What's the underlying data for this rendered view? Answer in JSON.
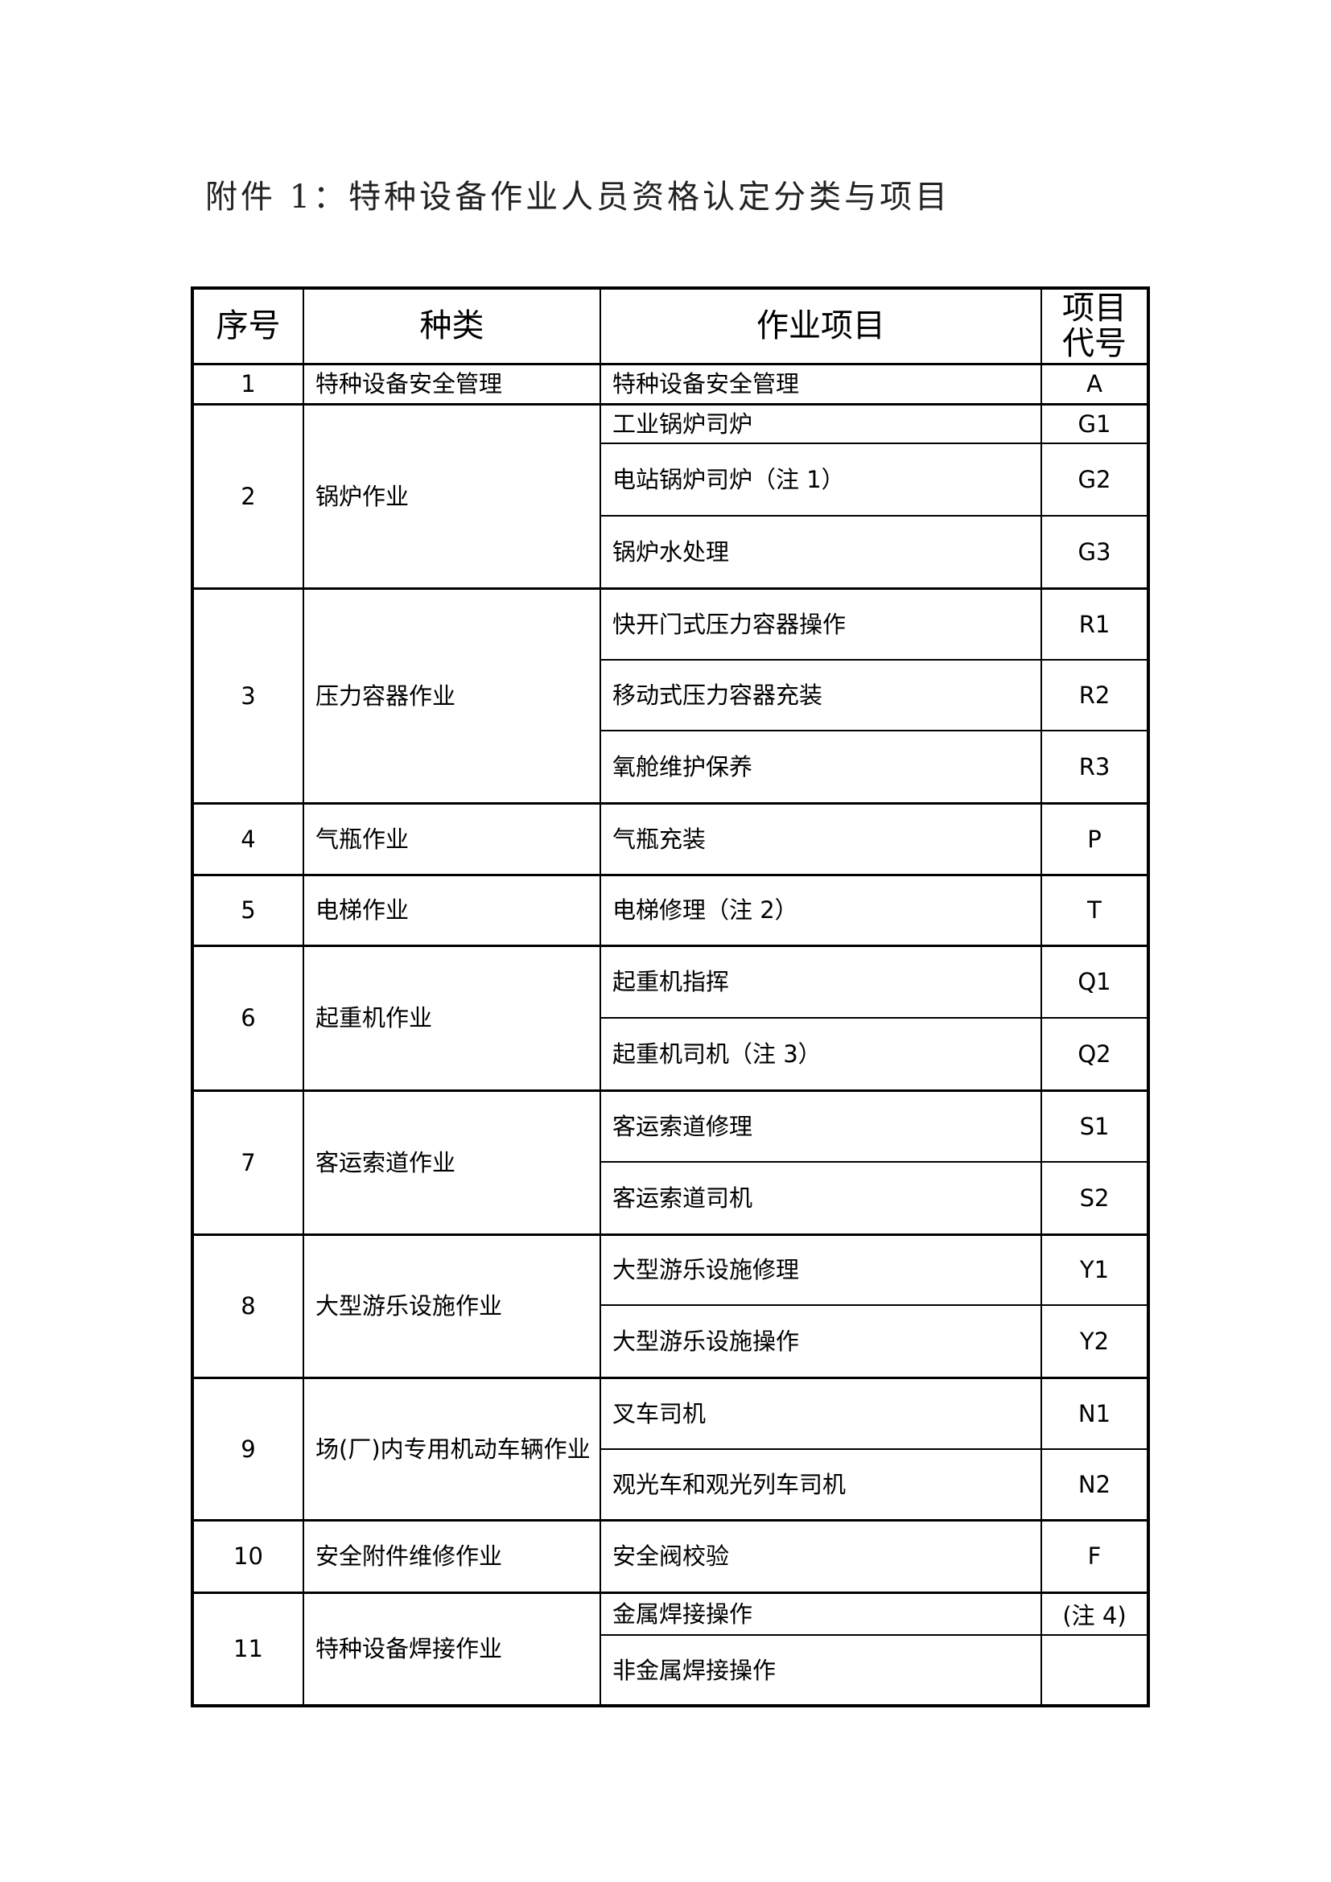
{
  "title": "附件 1：特种设备作业人员资格认定分类与项目",
  "table": {
    "headers": {
      "no": "序号",
      "category": "种类",
      "item": "作业项目",
      "code_line1": "项目",
      "code_line2": "代号"
    },
    "groups": [
      {
        "no": "1",
        "category": "特种设备安全管理",
        "items": [
          {
            "name": "特种设备安全管理",
            "code": "A"
          }
        ]
      },
      {
        "no": "2",
        "category": "锅炉作业",
        "items": [
          {
            "name": "工业锅炉司炉",
            "code": "G1"
          },
          {
            "name": "电站锅炉司炉（注 1）",
            "code": "G2"
          },
          {
            "name": "锅炉水处理",
            "code": "G3"
          }
        ]
      },
      {
        "no": "3",
        "category": "压力容器作业",
        "items": [
          {
            "name": "快开门式压力容器操作",
            "code": "R1"
          },
          {
            "name": "移动式压力容器充装",
            "code": "R2"
          },
          {
            "name": "氧舱维护保养",
            "code": "R3"
          }
        ]
      },
      {
        "no": "4",
        "category": "气瓶作业",
        "items": [
          {
            "name": "气瓶充装",
            "code": "P"
          }
        ]
      },
      {
        "no": "5",
        "category": "电梯作业",
        "items": [
          {
            "name": "电梯修理（注 2）",
            "code": "T"
          }
        ]
      },
      {
        "no": "6",
        "category": "起重机作业",
        "items": [
          {
            "name": "起重机指挥",
            "code": "Q1"
          },
          {
            "name": "起重机司机（注 3）",
            "code": "Q2"
          }
        ]
      },
      {
        "no": "7",
        "category": "客运索道作业",
        "items": [
          {
            "name": "客运索道修理",
            "code": "S1"
          },
          {
            "name": "客运索道司机",
            "code": "S2"
          }
        ]
      },
      {
        "no": "8",
        "category": "大型游乐设施作业",
        "items": [
          {
            "name": "大型游乐设施修理",
            "code": "Y1"
          },
          {
            "name": "大型游乐设施操作",
            "code": "Y2"
          }
        ]
      },
      {
        "no": "9",
        "category": "场(厂)内专用机动车辆作业",
        "items": [
          {
            "name": "叉车司机",
            "code": "N1"
          },
          {
            "name": "观光车和观光列车司机",
            "code": "N2"
          }
        ]
      },
      {
        "no": "10",
        "category": "安全附件维修作业",
        "items": [
          {
            "name": "安全阀校验",
            "code": "F"
          }
        ]
      },
      {
        "no": "11",
        "category": "特种设备焊接作业",
        "items": [
          {
            "name": "金属焊接操作",
            "code": "(注 4)"
          },
          {
            "name": "非金属焊接操作",
            "code": ""
          }
        ]
      }
    ]
  }
}
